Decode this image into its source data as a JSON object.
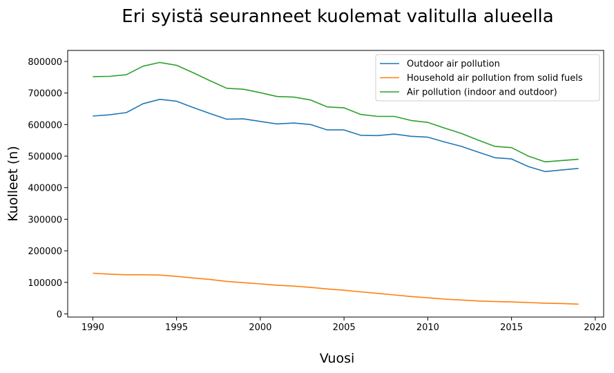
{
  "chart_data": {
    "type": "line",
    "title": "Eri syistä seuranneet kuolemat valitulla alueella",
    "xlabel": "Vuosi",
    "ylabel": "Kuolleet (n)",
    "xlim": [
      1988.5,
      2020.5
    ],
    "ylim": [
      -10000,
      835000
    ],
    "xticks": [
      1990,
      1995,
      2000,
      2005,
      2010,
      2015,
      2020
    ],
    "yticks": [
      0,
      100000,
      200000,
      300000,
      400000,
      500000,
      600000,
      700000,
      800000
    ],
    "grid": false,
    "legend_position": "top-right",
    "x": [
      1990,
      1991,
      1992,
      1993,
      1994,
      1995,
      1996,
      1997,
      1998,
      1999,
      2000,
      2001,
      2002,
      2003,
      2004,
      2005,
      2006,
      2007,
      2008,
      2009,
      2010,
      2011,
      2012,
      2013,
      2014,
      2015,
      2016,
      2017,
      2018,
      2019
    ],
    "series": [
      {
        "name": "Outdoor air pollution",
        "color": "#1f77b4",
        "values": [
          627000,
          631000,
          638000,
          666000,
          680000,
          674000,
          654000,
          635000,
          617000,
          618000,
          610000,
          602000,
          605000,
          600000,
          583000,
          583000,
          566000,
          565000,
          570000,
          563000,
          560000,
          545000,
          531000,
          513000,
          495000,
          491000,
          467000,
          451000,
          456000,
          461000
        ]
      },
      {
        "name": "Household air pollution from solid fuels",
        "color": "#ff7f0e",
        "values": [
          129000,
          126000,
          124000,
          124000,
          123000,
          119000,
          114000,
          109000,
          103000,
          99000,
          95000,
          91000,
          88000,
          84000,
          79000,
          75000,
          70000,
          65000,
          60000,
          55000,
          51000,
          47000,
          44000,
          41000,
          39000,
          38000,
          36000,
          34000,
          33000,
          31000
        ]
      },
      {
        "name": "Air pollution (indoor and outdoor)",
        "color": "#2ca02c",
        "values": [
          752000,
          753000,
          758000,
          785000,
          797000,
          788000,
          764000,
          739000,
          715000,
          712000,
          701000,
          689000,
          687000,
          678000,
          656000,
          653000,
          632000,
          626000,
          626000,
          613000,
          607000,
          589000,
          572000,
          551000,
          531000,
          527000,
          500000,
          482000,
          486000,
          490000
        ]
      }
    ]
  }
}
